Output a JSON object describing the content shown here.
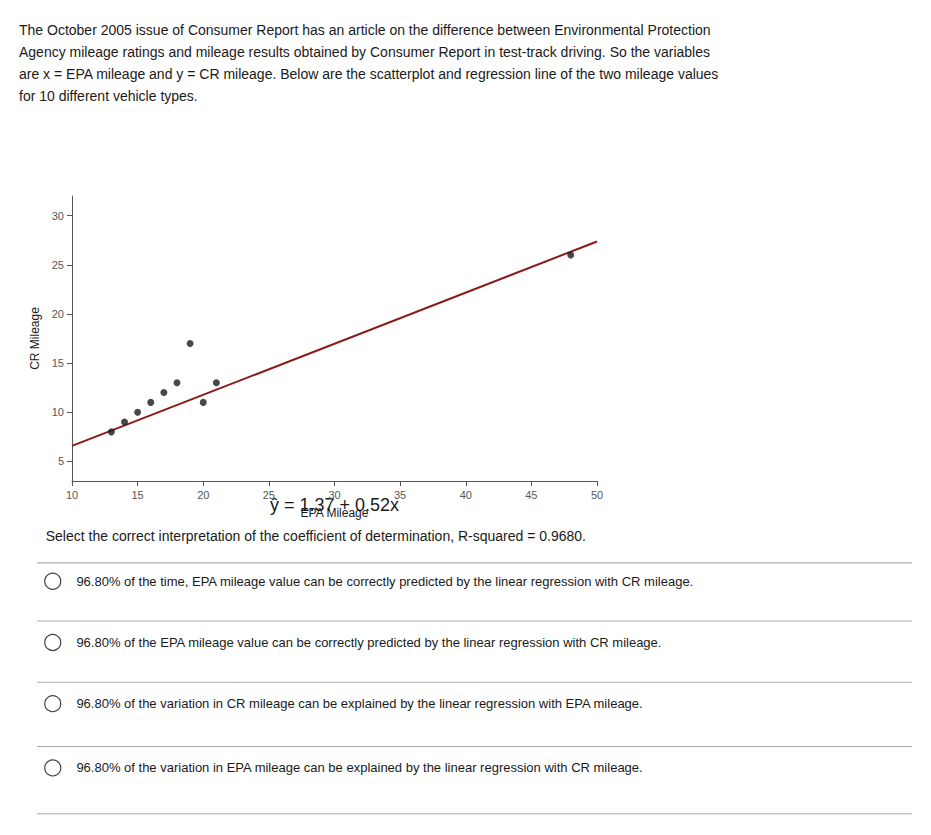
{
  "chart_data": {
    "type": "scatter",
    "title": "The October 2005 issue of Consumer Report has an article on the difference between Environmental Protection\nAgency mileage ratings and mileage results obtained by Consumer Report in test-track driving. So the variables\nare x = EPA mileage and y = CR mileage. Below are the scatterplot and regression line of the two mileage values\nfor 10 different vehicle types.",
    "xlabel": "EPA Mileage",
    "ylabel": "CR Mileage",
    "series": [
      {
        "type": "scatter",
        "color": "#1a1a1a",
        "marker": "circle",
        "x": [
          13,
          14,
          15,
          16,
          17,
          18,
          19,
          20,
          21,
          48
        ],
        "values": [
          8,
          9,
          10,
          11,
          12,
          13,
          17,
          11,
          13,
          26
        ]
      },
      {
        "type": "line",
        "color": "#8B1A1A",
        "line_style": "solid",
        "x": [
          10,
          50
        ],
        "values": [
          6.57,
          27.37
        ]
      }
    ],
    "xlim": [
      10,
      50
    ],
    "xticks": [
      10,
      15,
      20,
      25,
      30,
      35,
      40,
      45,
      50
    ],
    "ylim": [
      3,
      32
    ],
    "yticks": [
      5,
      10,
      15,
      20,
      25,
      30
    ],
    "grid": false,
    "annotations": [
      "ŷ = 1.37 + 0.52x"
    ],
    "question": "Select the correct interpretation of the coefficient of determination, R-squared = 0.9680.",
    "options": [
      "96.80% of the time, EPA mileage value can be correctly predicted by the linear regression with CR mileage.",
      "96.80% of the EPA mileage value can be correctly predicted by the linear regression with CR mileage.",
      "96.80% of the variation in CR mileage can be explained by the linear regression with EPA mileage.",
      "96.80% of the variation in EPA mileage can be explained by the linear regression with CR mileage."
    ]
  }
}
